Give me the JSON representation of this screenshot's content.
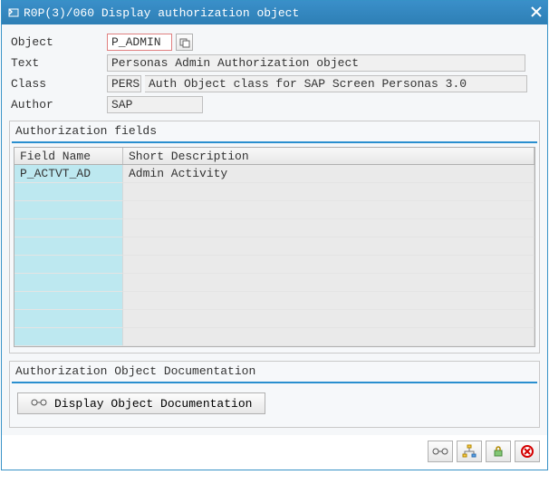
{
  "titlebar": {
    "text": "R0P(3)/060 Display authorization object"
  },
  "fields": {
    "object_label": "Object",
    "object_value": "P_ADMIN",
    "text_label": "Text",
    "text_value": "Personas Admin Authorization object",
    "class_label": "Class",
    "class_code": "PERS",
    "class_desc": "Auth Object class for SAP Screen Personas 3.0",
    "author_label": "Author",
    "author_value": "SAP"
  },
  "auth_fields_panel": {
    "title": "Authorization fields",
    "columns": [
      "Field Name",
      "Short Description"
    ],
    "rows": [
      {
        "name": "P_ACTVT_AD",
        "desc": "Admin Activity"
      },
      {
        "name": "",
        "desc": ""
      },
      {
        "name": "",
        "desc": ""
      },
      {
        "name": "",
        "desc": ""
      },
      {
        "name": "",
        "desc": ""
      },
      {
        "name": "",
        "desc": ""
      },
      {
        "name": "",
        "desc": ""
      },
      {
        "name": "",
        "desc": ""
      },
      {
        "name": "",
        "desc": ""
      },
      {
        "name": "",
        "desc": ""
      }
    ]
  },
  "doc_panel": {
    "title": "Authorization Object Documentation",
    "button_label": "Display Object Documentation"
  },
  "colors": {
    "titlebar_bg": "#3a8fc9",
    "divider": "#2a8fcf",
    "cell_c1": "#bde8f0",
    "cell_c2": "#eaeaea",
    "object_border": "#e08080"
  }
}
